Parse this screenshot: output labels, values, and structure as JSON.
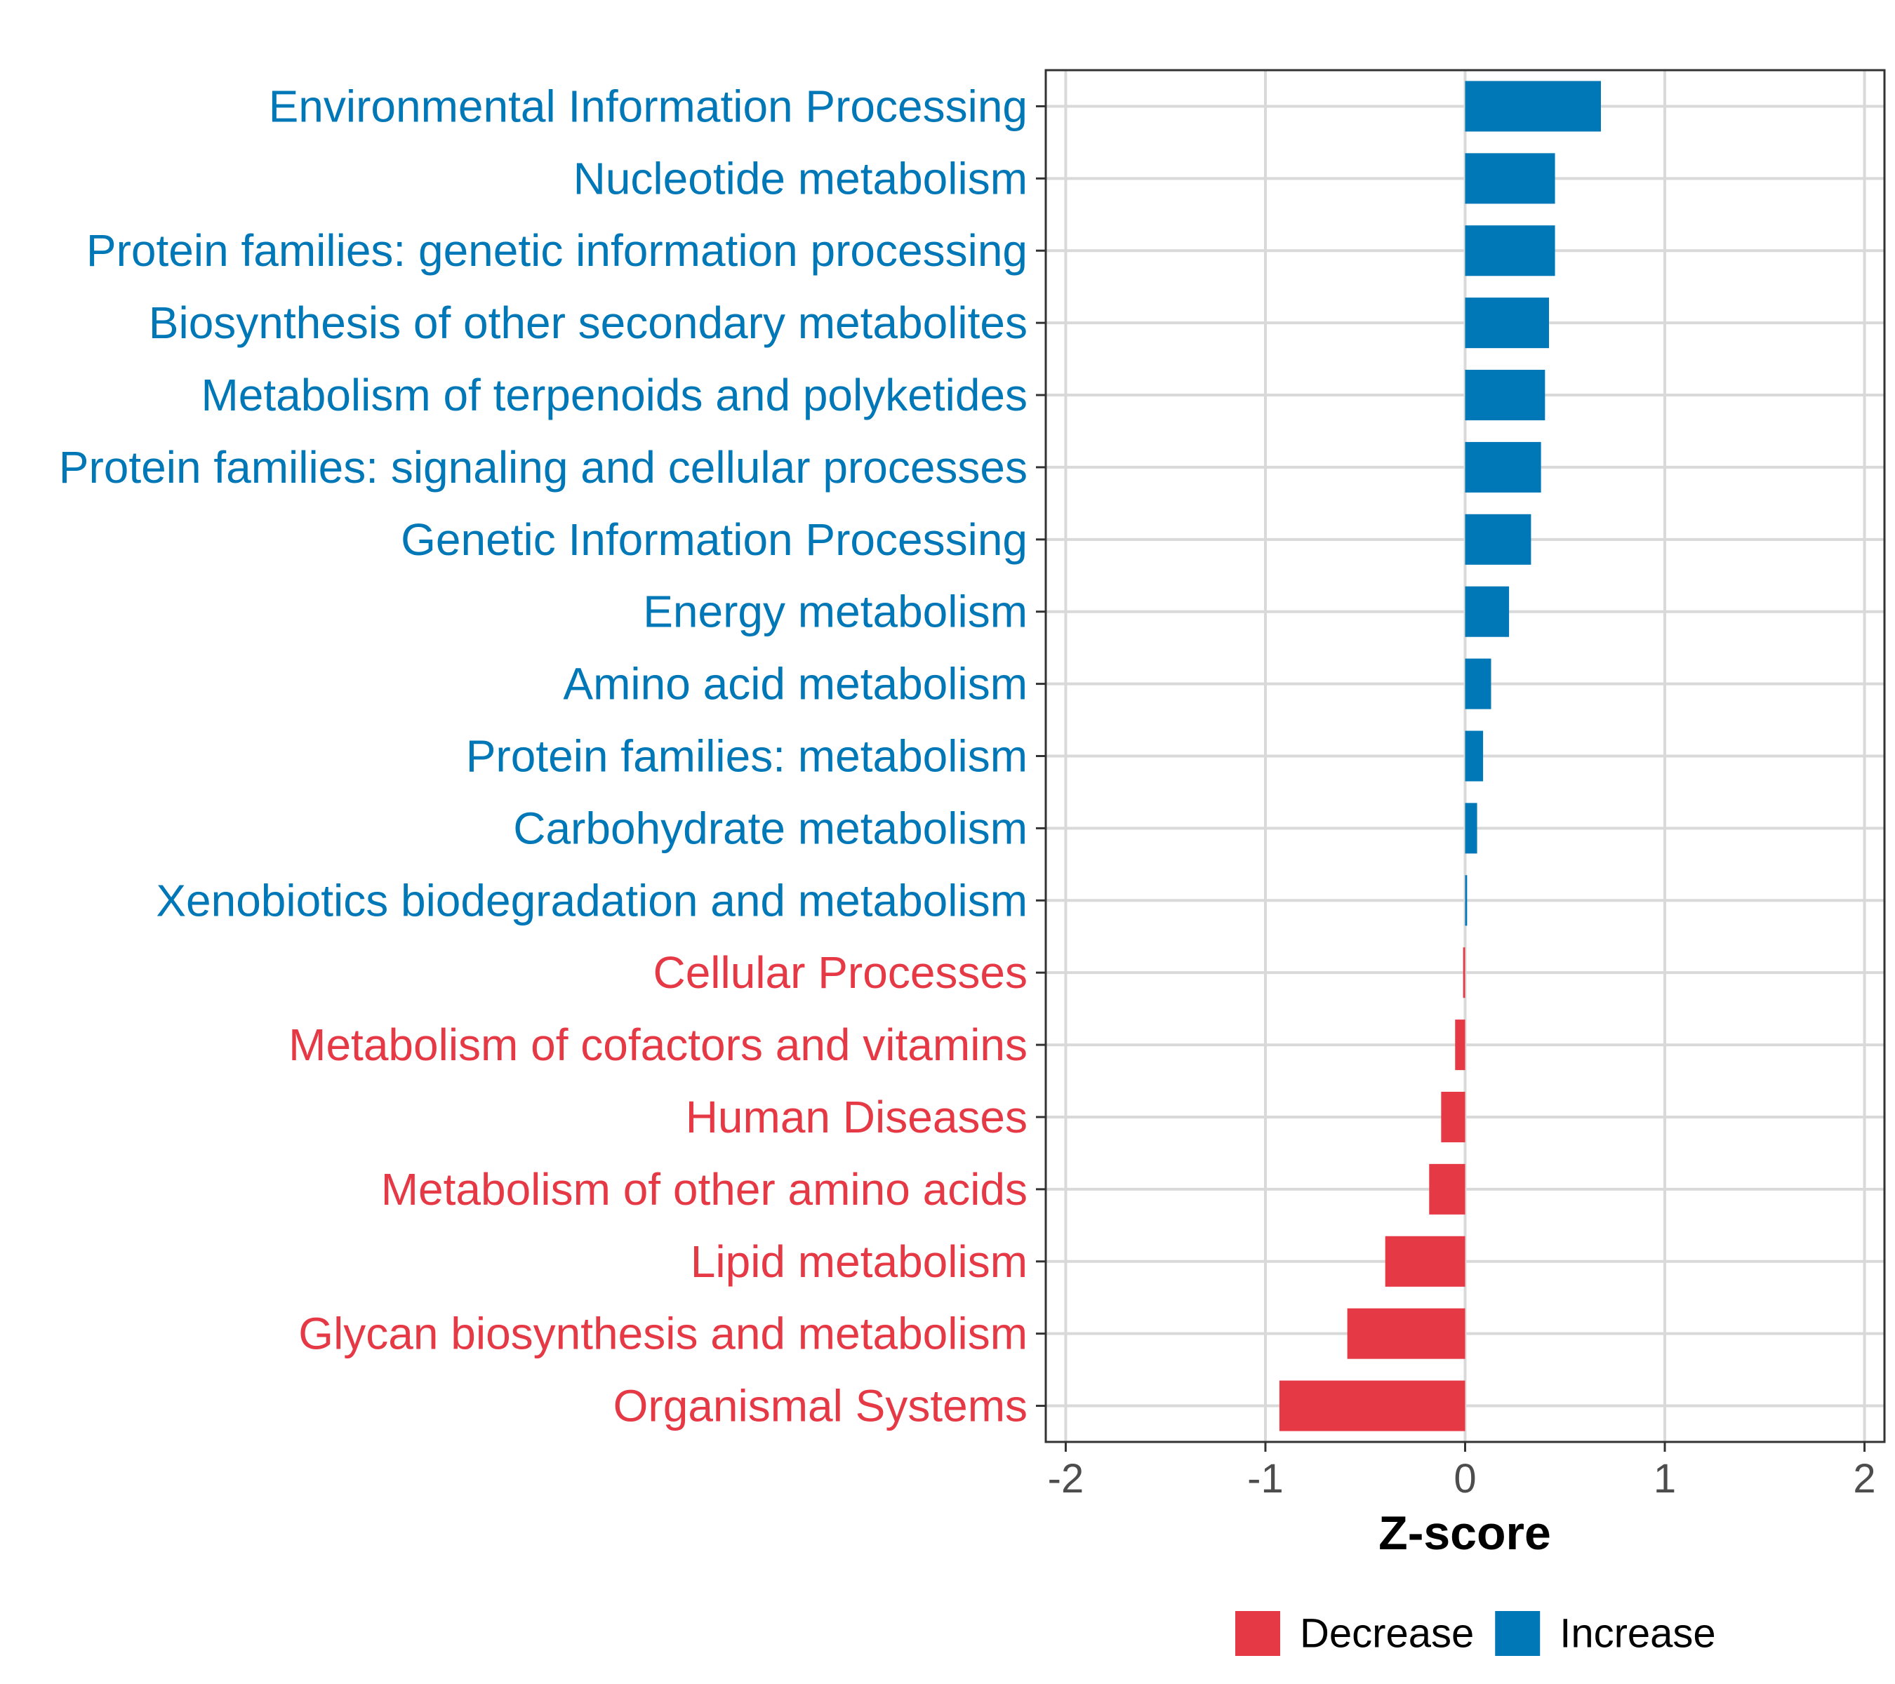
{
  "chart_data": {
    "type": "bar",
    "orientation": "horizontal",
    "title": "",
    "xlabel": "Z-score",
    "ylabel": "",
    "xlim": [
      -2.1,
      2.1
    ],
    "xticks": [
      -2,
      -1,
      0,
      1,
      2
    ],
    "xtick_labels": [
      "-2",
      "-1",
      "0",
      "1",
      "2"
    ],
    "grid": true,
    "legend_position": "bottom",
    "categories": [
      "Environmental Information Processing",
      "Nucleotide metabolism",
      "Protein families: genetic information processing",
      "Biosynthesis of other secondary metabolites",
      "Metabolism of terpenoids and polyketides",
      "Protein families: signaling and cellular processes",
      "Genetic Information Processing",
      "Energy metabolism",
      "Amino acid metabolism",
      "Protein families: metabolism",
      "Carbohydrate metabolism",
      "Xenobiotics biodegradation and metabolism",
      "Cellular Processes",
      "Metabolism of cofactors and vitamins",
      "Human Diseases",
      "Metabolism of other amino acids",
      "Lipid metabolism",
      "Glycan biosynthesis and metabolism",
      "Organismal Systems"
    ],
    "values": [
      0.68,
      0.45,
      0.45,
      0.42,
      0.4,
      0.38,
      0.33,
      0.22,
      0.13,
      0.09,
      0.06,
      0.01,
      -0.01,
      -0.05,
      -0.12,
      -0.18,
      -0.4,
      -0.59,
      -0.93
    ],
    "groups": [
      "Increase",
      "Increase",
      "Increase",
      "Increase",
      "Increase",
      "Increase",
      "Increase",
      "Increase",
      "Increase",
      "Increase",
      "Increase",
      "Increase",
      "Decrease",
      "Decrease",
      "Decrease",
      "Decrease",
      "Decrease",
      "Decrease",
      "Decrease"
    ],
    "legend": [
      {
        "name": "Decrease",
        "color": "#e63946"
      },
      {
        "name": "Increase",
        "color": "#0077b6"
      }
    ],
    "colors": {
      "Increase": "#0077b6",
      "Decrease": "#e63946"
    }
  }
}
